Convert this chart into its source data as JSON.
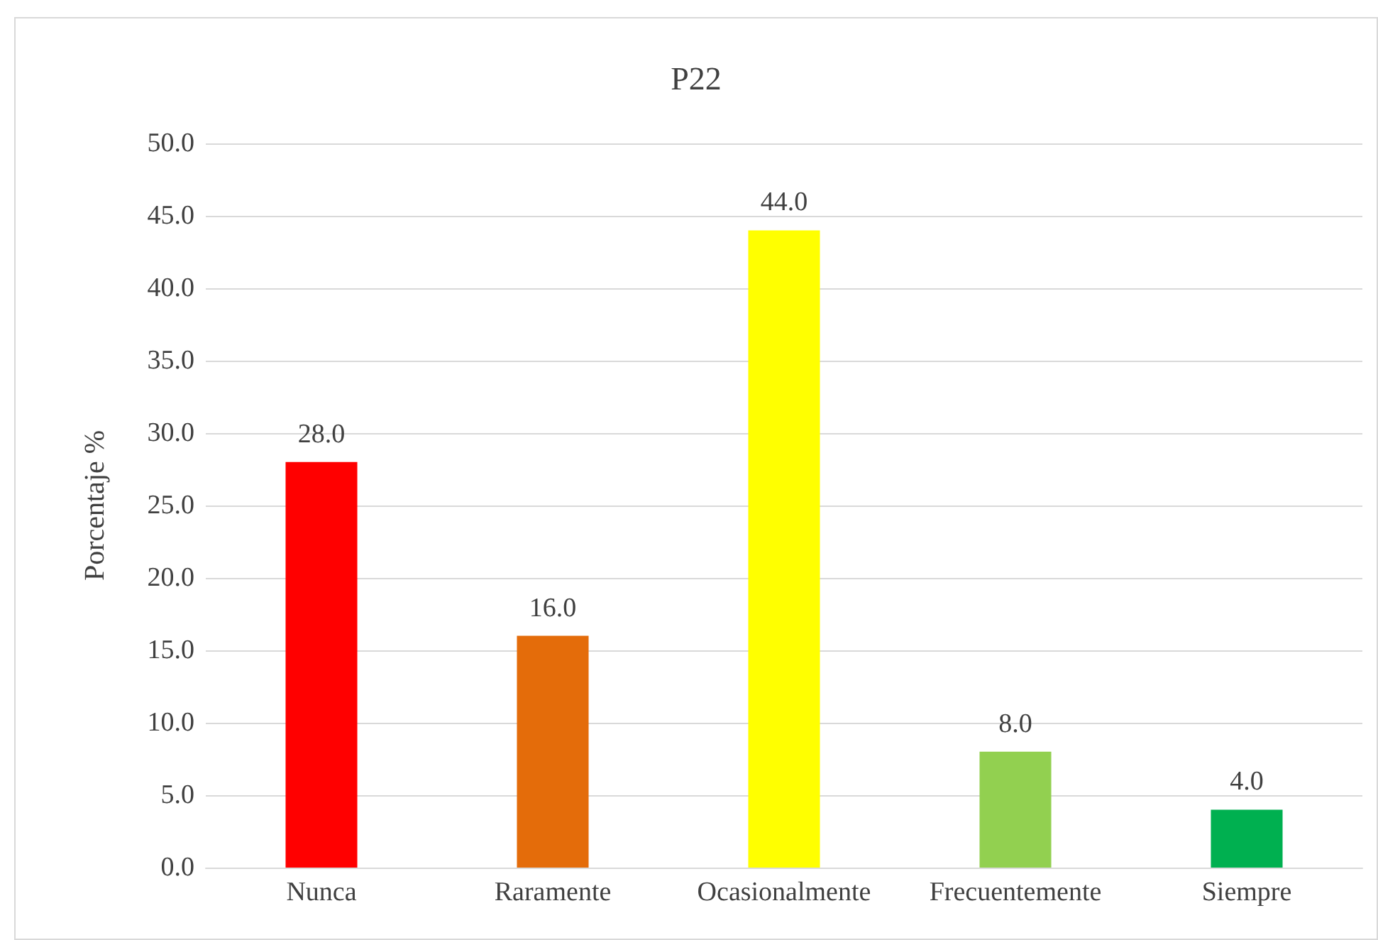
{
  "chart_data": {
    "type": "bar",
    "title": "P22",
    "ylabel": "Porcentaje %",
    "categories": [
      "Nunca",
      "Raramente",
      "Ocasionalmente",
      "Frecuentemente",
      "Siempre"
    ],
    "values": [
      28,
      16,
      44,
      8,
      4
    ],
    "colors": [
      "#ff0000",
      "#e46c0a",
      "#ffff00",
      "#92d050",
      "#00b050"
    ],
    "value_labels": [
      "28.0",
      "16.0",
      "44.0",
      "8.0",
      "4.0"
    ],
    "ylim": [
      0,
      50
    ],
    "yticks": [
      {
        "value": 0,
        "label": "0.0"
      },
      {
        "value": 5,
        "label": "5.0"
      },
      {
        "value": 10,
        "label": "10.0"
      },
      {
        "value": 15,
        "label": "15.0"
      },
      {
        "value": 20,
        "label": "20.0"
      },
      {
        "value": 25,
        "label": "25.0"
      },
      {
        "value": 30,
        "label": "30.0"
      },
      {
        "value": 35,
        "label": "35.0"
      },
      {
        "value": 40,
        "label": "40.0"
      },
      {
        "value": 45,
        "label": "45.0"
      },
      {
        "value": 50,
        "label": "50.0"
      }
    ],
    "grid": "y"
  }
}
